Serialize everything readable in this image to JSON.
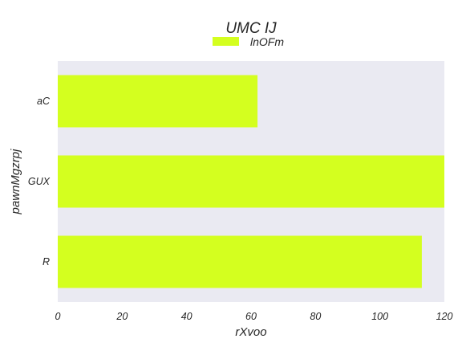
{
  "chart_data": {
    "type": "bar",
    "orientation": "horizontal",
    "title": "UMC IJ",
    "xlabel": "rXvoo",
    "ylabel": "pawnMgzrpj",
    "categories": [
      "aC",
      "GUX",
      "R"
    ],
    "series": [
      {
        "name": "lnOFm",
        "values": [
          62,
          120,
          113
        ],
        "color": "#d4ff1f"
      }
    ],
    "xlim": [
      0,
      120
    ],
    "xticks": [
      0,
      20,
      40,
      60,
      80,
      100,
      120
    ],
    "grid": false,
    "legend_position": "top-center",
    "plot_background": "#eaeaf2"
  }
}
